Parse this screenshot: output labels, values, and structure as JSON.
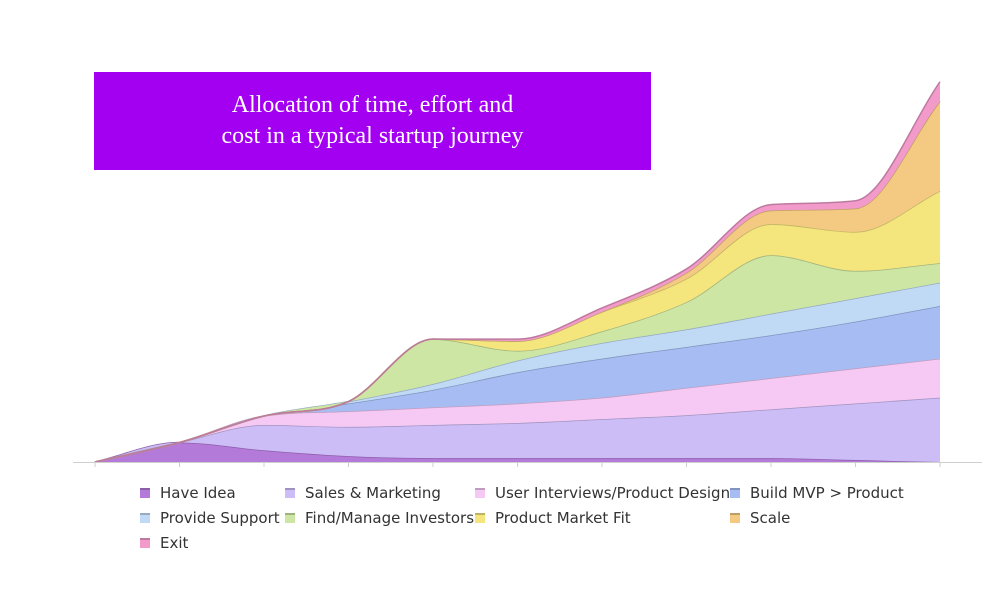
{
  "chart_data": {
    "type": "area",
    "stacked": true,
    "smooth": true,
    "title_lines": [
      "Allocation of time, effort and",
      "cost in a typical startup journey"
    ],
    "title_background": "#a300f2",
    "x": [
      0,
      1,
      2,
      3,
      4,
      5,
      6,
      7,
      8,
      9,
      10
    ],
    "xlim": [
      0,
      10
    ],
    "ylim": [
      0,
      100
    ],
    "grid": false,
    "legend_position": "bottom",
    "series": [
      {
        "name": "Have Idea",
        "color": "#b47ad9",
        "values": [
          0,
          5,
          3,
          1.5,
          1,
          1,
          1,
          1,
          1,
          0.5,
          0
        ]
      },
      {
        "name": "Sales & Marketing",
        "color": "#cdbdf6",
        "values": [
          0,
          0,
          6.5,
          7.5,
          8.5,
          9,
          10,
          11,
          12.5,
          14.5,
          16.5
        ]
      },
      {
        "name": "User Interviews/Product Design",
        "color": "#f6c9f4",
        "values": [
          0,
          0,
          2.3,
          4,
          4.5,
          5,
          5.5,
          7,
          8,
          9,
          10
        ]
      },
      {
        "name": "Build MVP > Product",
        "color": "#a7bcf2",
        "values": [
          0,
          0,
          0,
          2,
          4.5,
          8,
          10,
          10.5,
          11,
          12,
          13.5
        ]
      },
      {
        "name": "Provide Support",
        "color": "#c0daf6",
        "values": [
          0,
          0,
          0,
          0.5,
          1.5,
          3,
          4,
          4.5,
          5.5,
          6,
          6
        ]
      },
      {
        "name": "Find/Manage Investors",
        "color": "#cde6a3",
        "values": [
          0,
          0,
          0,
          0,
          11.5,
          2.5,
          3,
          7,
          15,
          7,
          5
        ]
      },
      {
        "name": "Product Market Fit",
        "color": "#f5e57d",
        "values": [
          0,
          0,
          0,
          0,
          0,
          2.5,
          5,
          6,
          8,
          10,
          18.5
        ]
      },
      {
        "name": "Scale",
        "color": "#f4ca83",
        "values": [
          0,
          0,
          0,
          0,
          0,
          0,
          0,
          1.5,
          3.5,
          6,
          23
        ]
      },
      {
        "name": "Exit",
        "color": "#f29bcb",
        "values": [
          0,
          0,
          0,
          0,
          0,
          0.5,
          1,
          1,
          1.5,
          2,
          5
        ]
      }
    ]
  }
}
